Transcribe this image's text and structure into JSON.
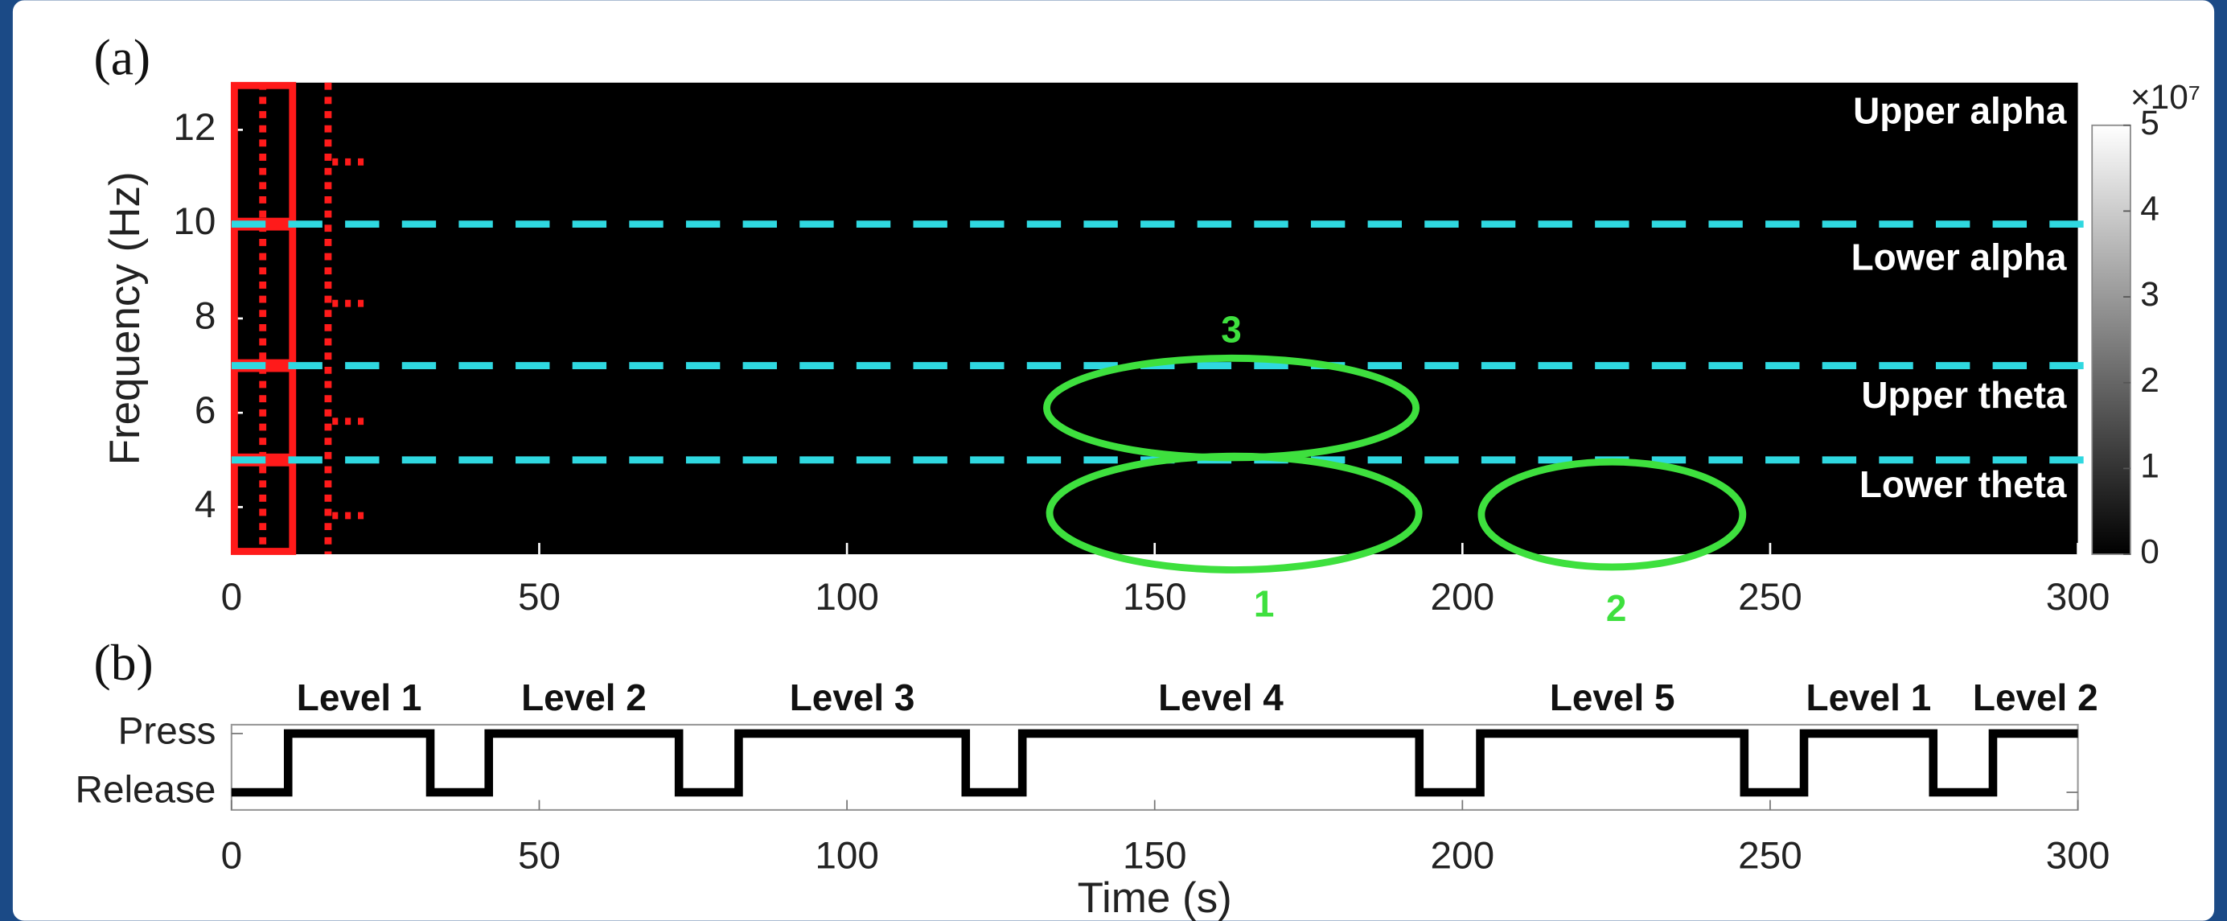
{
  "chart_data": [
    {
      "type": "heatmap",
      "panel_label": "(a)",
      "y_label": "Frequency (Hz)",
      "xlim": [
        0,
        300
      ],
      "xticks": [
        0,
        50,
        100,
        150,
        200,
        250,
        300
      ],
      "ylim": [
        3,
        13
      ],
      "yticks": [
        4,
        6,
        8,
        10,
        12
      ],
      "band_boundaries": [
        10,
        7,
        5
      ],
      "band_color": "#2fd8e0",
      "band_labels": [
        "Upper alpha",
        "Lower alpha",
        "Upper theta",
        "Lower theta"
      ],
      "annotations": [
        "3",
        "1",
        "2"
      ],
      "annotation_color": "#3ee03e",
      "colorbar": {
        "lim": [
          0,
          5
        ],
        "ticks": [
          0,
          1,
          2,
          3,
          4,
          5
        ],
        "label": "×10⁷"
      }
    },
    {
      "type": "line",
      "panel_label": "(b)",
      "x_label": "Time (s)",
      "xlim": [
        0,
        300
      ],
      "xticks": [
        0,
        50,
        100,
        150,
        200,
        250,
        300
      ],
      "ylim": [
        -0.3,
        1.15
      ],
      "yticks": [
        {
          "value": 0,
          "label": "Release"
        },
        {
          "value": 1,
          "label": "Press"
        }
      ],
      "x": [
        0,
        9.2,
        9.2,
        32.3,
        32.3,
        41.8,
        41.8,
        72.7,
        72.7,
        82.4,
        82.4,
        119.3,
        119.3,
        128.5,
        128.5,
        193,
        193,
        202.9,
        202.9,
        245.8,
        245.8,
        255.5,
        255.5,
        276.5,
        276.5,
        286.2,
        286.2,
        300
      ],
      "series": [
        {
          "color": "#000000",
          "values": [
            0,
            0,
            1,
            1,
            0,
            0,
            1,
            1,
            0,
            0,
            1,
            1,
            0,
            0,
            1,
            1,
            0,
            0,
            1,
            1,
            0,
            0,
            1,
            1,
            0,
            0,
            1,
            1
          ]
        }
      ],
      "levels": [
        "Level 1",
        "Level 2",
        "Level 3",
        "Level 4",
        "Level 5",
        "Level 1",
        "Level 2"
      ]
    }
  ]
}
